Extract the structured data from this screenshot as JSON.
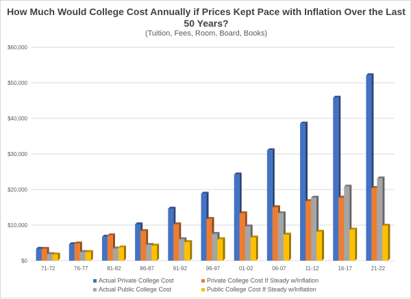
{
  "chart_data": {
    "type": "bar",
    "title": "How Much Would College Cost Annually if Prices Kept Pace with Inflation Over the Last 50 Years?",
    "subtitle": "(Tuition, Fees, Room, Board, Books)",
    "xlabel": "",
    "ylabel": "",
    "ylim": [
      0,
      60000
    ],
    "yticks": [
      0,
      10000,
      20000,
      30000,
      40000,
      50000,
      60000
    ],
    "ytick_labels": [
      "$0",
      "$10,000",
      "$20,000",
      "$30,000",
      "$40,000",
      "$50,000",
      "$60,000"
    ],
    "grid": true,
    "legend_position": "bottom",
    "style": "3d-clustered-column",
    "categories": [
      "71-72",
      "76-77",
      "81-82",
      "86-87",
      "91-92",
      "96-97",
      "01-02",
      "06-07",
      "11-12",
      "16-17",
      "21-22"
    ],
    "series": [
      {
        "name": "Actual Private College Cost",
        "color": "#4472c4",
        "values": [
          3300,
          4600,
          6700,
          10200,
          14600,
          18800,
          24200,
          31000,
          38500,
          45800,
          52100
        ]
      },
      {
        "name": "Private College Cost If Steady w/Inflation",
        "color": "#ed7d31",
        "values": [
          3300,
          4800,
          7100,
          8300,
          10200,
          11700,
          13300,
          15000,
          16700,
          17700,
          20400
        ]
      },
      {
        "name": "Actual Public College Cost",
        "color": "#a5a5a5",
        "values": [
          1800,
          2400,
          3400,
          4400,
          6000,
          7500,
          9600,
          13300,
          17700,
          20800,
          23100
        ]
      },
      {
        "name": "Public College Cost If Steady w/Inflation",
        "color": "#ffc000",
        "values": [
          1700,
          2400,
          3700,
          4200,
          5200,
          6000,
          6500,
          7300,
          8100,
          8700,
          9800
        ]
      }
    ]
  }
}
